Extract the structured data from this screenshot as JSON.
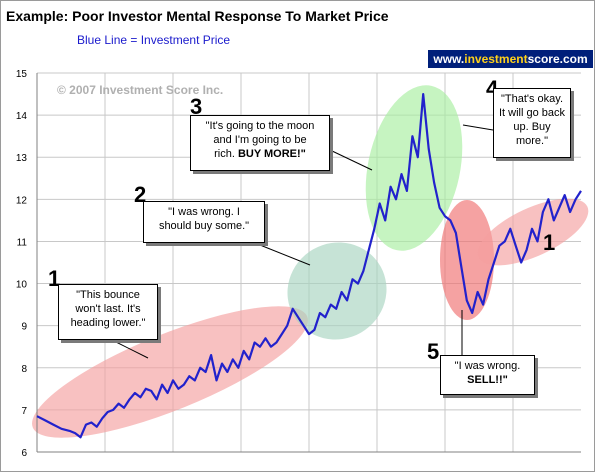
{
  "header": {
    "title": "Example:  Poor Investor Mental Response To Market Price",
    "legend_note": "Blue Line = Investment Price",
    "brand_prefix": "www.",
    "brand_highlight": "investment",
    "brand_suffix": "score.com"
  },
  "watermark": "© 2007 Investment Score Inc.",
  "colors": {
    "line": "#2222cc",
    "grid": "#c8c8c8",
    "brand_bg": "#001f7a",
    "ellipse_red": "#f4a0a0",
    "ellipse_green": "#a8d8a8",
    "ellipse_teal": "#a8d4c0",
    "ellipse_lightgreen": "#a8eea0",
    "ellipse_redstrong": "#f07070"
  },
  "annotations": [
    {
      "number": "1",
      "line1": "\"This bounce",
      "line2": "won't last.  It's",
      "line3": "heading lower.\"",
      "bold": ""
    },
    {
      "number": "2",
      "line1": "\"I was wrong.  I",
      "line2": "should buy some.\"",
      "line3": "",
      "bold": ""
    },
    {
      "number": "3",
      "line1": "\"It's going to the moon",
      "line2": "and I'm going to be",
      "line3": "rich.",
      "bold": "BUY MORE!\""
    },
    {
      "number": "4",
      "line1": "\"That's okay.",
      "line2": "It will go back",
      "line3": "up.  Buy",
      "line4": "more.\"",
      "bold": ""
    },
    {
      "number": "5",
      "line1": "\"I was wrong.",
      "line2": "",
      "line3": "",
      "bold": "SELL!!\""
    },
    {
      "number": "1"
    }
  ],
  "chart_data": {
    "type": "line",
    "title": "Example:  Poor Investor Mental Response To Market Price",
    "legend": "Blue Line = Investment Price",
    "ylim": [
      6,
      15
    ],
    "yticks": [
      6,
      7,
      8,
      9,
      10,
      11,
      12,
      13,
      14,
      15
    ],
    "xlim": [
      0,
      100
    ],
    "grid": true,
    "series": [
      {
        "name": "Investment Price",
        "x": [
          0,
          1.5,
          3,
          4.5,
          6,
          7,
          8,
          9,
          10,
          11,
          12,
          13,
          14,
          15,
          16,
          17,
          18,
          19,
          20,
          21,
          22,
          23,
          24,
          25,
          26,
          27,
          28,
          29,
          30,
          31,
          32,
          33,
          34,
          35,
          36,
          37,
          38,
          39,
          40,
          41,
          42,
          43,
          44,
          45,
          46,
          47,
          48,
          49,
          50,
          51,
          52,
          53,
          54,
          55,
          56,
          57,
          58,
          59,
          60,
          61,
          62,
          63,
          64,
          65,
          66,
          67,
          68,
          69,
          70,
          71,
          72,
          73,
          74,
          75,
          76,
          77,
          78,
          79,
          80,
          81,
          82,
          83,
          84,
          85,
          86,
          87,
          88,
          89,
          90,
          91,
          92,
          93,
          94,
          95,
          96,
          97,
          98,
          99,
          100
        ],
        "values": [
          6.85,
          6.75,
          6.65,
          6.55,
          6.5,
          6.45,
          6.35,
          6.65,
          6.7,
          6.6,
          6.8,
          6.95,
          7.0,
          7.15,
          7.05,
          7.25,
          7.4,
          7.3,
          7.5,
          7.45,
          7.25,
          7.6,
          7.4,
          7.7,
          7.5,
          7.6,
          7.8,
          7.7,
          8.0,
          7.9,
          8.3,
          7.7,
          8.1,
          7.9,
          8.2,
          8.0,
          8.4,
          8.2,
          8.6,
          8.5,
          8.7,
          8.5,
          8.6,
          8.8,
          9.0,
          9.4,
          9.2,
          9.0,
          8.8,
          8.9,
          9.3,
          9.2,
          9.5,
          9.4,
          9.8,
          9.6,
          10.1,
          10.0,
          10.3,
          10.8,
          11.3,
          11.9,
          11.5,
          12.3,
          12.0,
          12.6,
          12.2,
          13.5,
          13.0,
          14.5,
          13.2,
          12.4,
          11.8,
          11.6,
          11.5,
          11.2,
          10.4,
          9.6,
          9.3,
          9.8,
          9.5,
          10.1,
          10.5,
          10.9,
          11.0,
          11.3,
          10.9,
          10.5,
          10.8,
          11.3,
          11.0,
          11.7,
          12.0,
          11.5,
          11.8,
          12.1,
          11.7,
          12.0,
          12.2
        ]
      }
    ]
  }
}
